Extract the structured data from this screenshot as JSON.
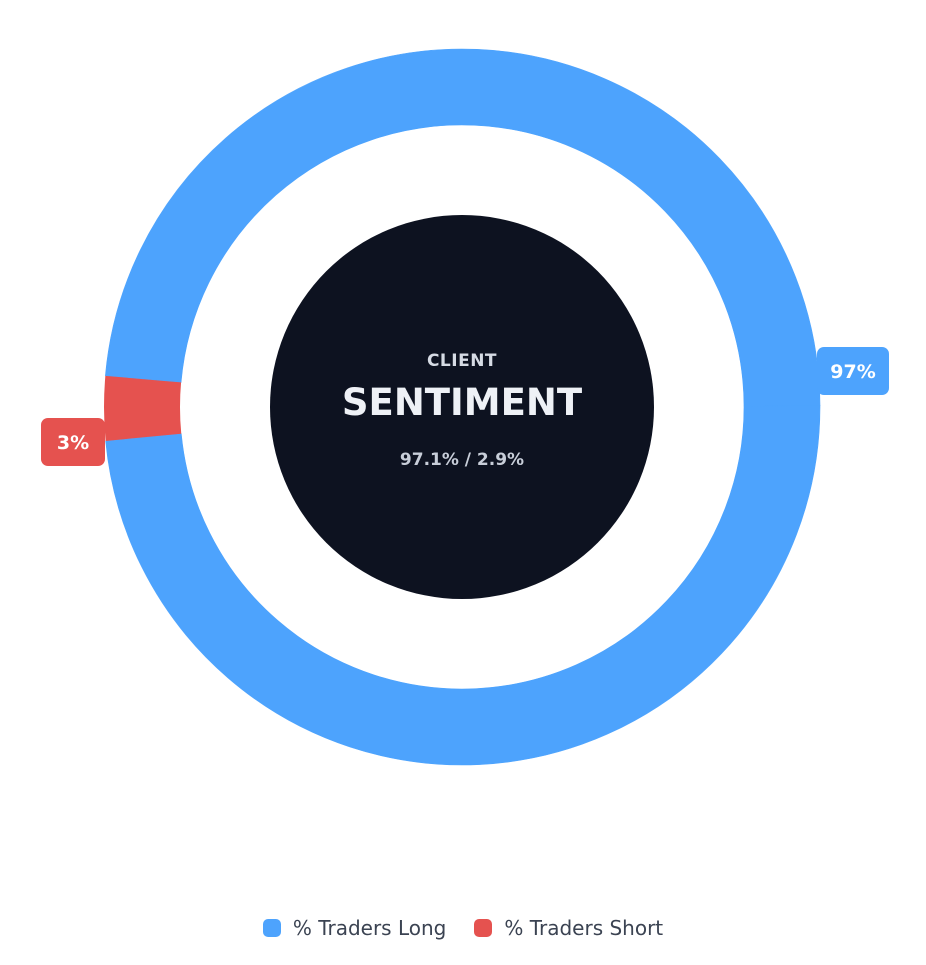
{
  "chart_data": {
    "type": "pie",
    "title": "CLIENT SENTIMENT",
    "categories": [
      "% Traders Long",
      "% Traders Short"
    ],
    "values": [
      97.1,
      2.9
    ],
    "colors": [
      "#4da3fd",
      "#e5524f"
    ],
    "slice_labels": [
      "97%",
      "3%"
    ],
    "center": {
      "top_text": "CLIENT",
      "main_text": "SENTIMENT",
      "ratio_text": "97.1% / 2.9%",
      "color": "#0d1220"
    },
    "legend": {
      "position": "bottom-center",
      "items": [
        {
          "label": "% Traders Long",
          "color": "#4da3fd"
        },
        {
          "label": "% Traders Short",
          "color": "#e5524f"
        }
      ]
    }
  }
}
